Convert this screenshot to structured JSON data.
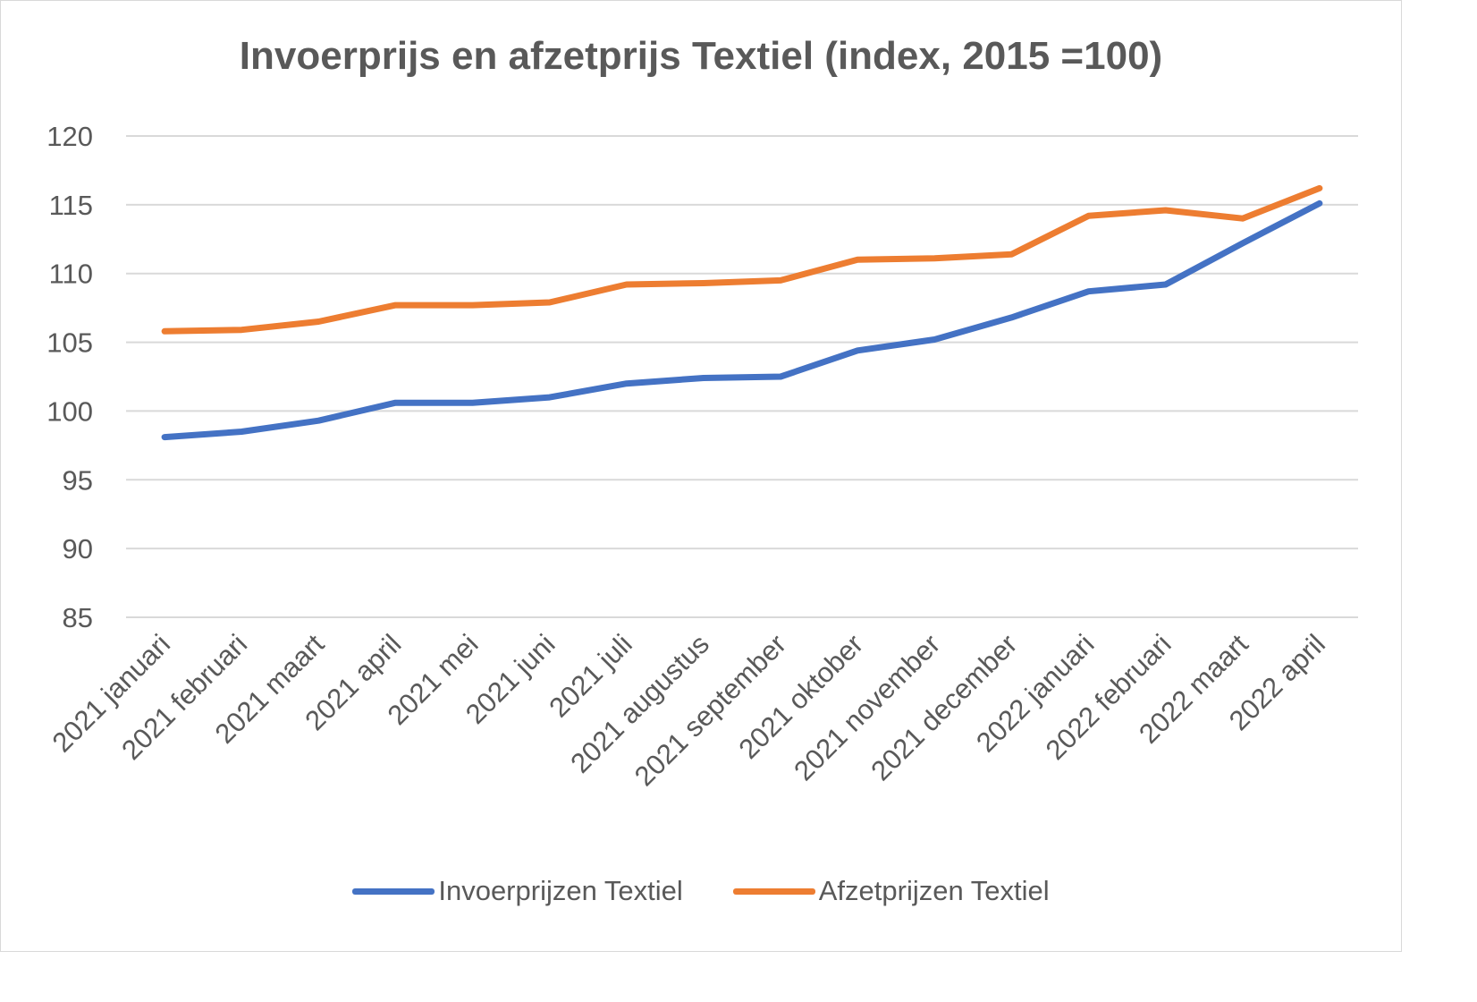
{
  "chart_data": {
    "type": "line",
    "title": "Invoerprijs en afzetprijs Textiel (index, 2015 =100)",
    "xlabel": "",
    "ylabel": "",
    "ylim": [
      85,
      120
    ],
    "yticks": [
      "85",
      "90",
      "95",
      "100",
      "105",
      "110",
      "115",
      "120"
    ],
    "grid": true,
    "legend_position": "bottom",
    "categories": [
      "2021 januari",
      "2021 februari",
      "2021 maart",
      "2021 april",
      "2021 mei",
      "2021 juni",
      "2021 juli",
      "2021 augustus",
      "2021 september",
      "2021 oktober",
      "2021 november",
      "2021 december",
      "2022 januari",
      "2022 februari",
      "2022 maart",
      "2022 april"
    ],
    "series": [
      {
        "name": "Invoerprijzen Textiel",
        "color": "#4472c4",
        "values": [
          98.1,
          98.5,
          99.3,
          100.6,
          100.6,
          101.0,
          102.0,
          102.4,
          102.5,
          104.4,
          105.2,
          106.8,
          108.7,
          109.2,
          112.2,
          115.1
        ]
      },
      {
        "name": "Afzetprijzen Textiel",
        "color": "#ed7d31",
        "values": [
          105.8,
          105.9,
          106.5,
          107.7,
          107.7,
          107.9,
          109.2,
          109.3,
          109.5,
          111.0,
          111.1,
          111.4,
          114.2,
          114.6,
          114.0,
          116.2
        ]
      }
    ]
  }
}
